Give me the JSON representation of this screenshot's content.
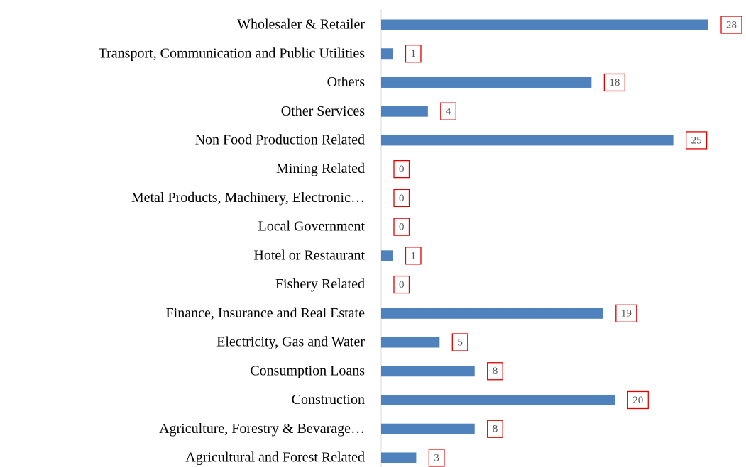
{
  "chart_data": {
    "type": "bar",
    "orientation": "horizontal",
    "categories": [
      "Wholesaler & Retailer",
      "Transport, Communication and Public Utilities",
      "Others",
      "Other Services",
      "Non Food Production Related",
      "Mining Related",
      "Metal Products, Machinery, Electronic…",
      "Local Government",
      "Hotel or Restaurant",
      "Fishery Related",
      "Finance, Insurance and Real Estate",
      "Electricity, Gas and Water",
      "Consumption Loans",
      "Construction",
      "Agriculture, Forestry & Bevarage…",
      "Agricultural and Forest Related"
    ],
    "values": [
      28,
      1,
      18,
      4,
      25,
      0,
      0,
      0,
      1,
      0,
      19,
      5,
      8,
      20,
      8,
      3
    ],
    "color": "#4f81bd",
    "label_border_color": "#e00000",
    "xlim": [
      0,
      28
    ]
  }
}
